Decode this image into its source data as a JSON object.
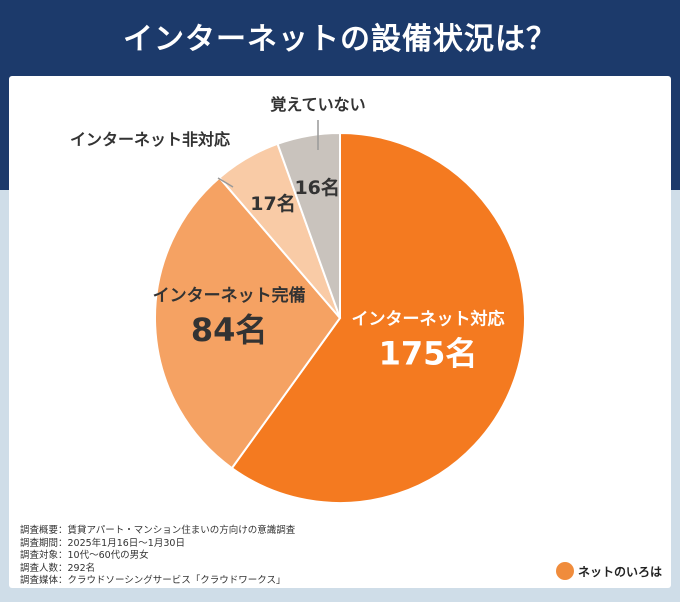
{
  "title": "インターネットの設備状況は？",
  "chart_data": {
    "type": "pie",
    "title": "インターネットの設備状況は？",
    "unit": "名",
    "slices": [
      {
        "label": "インターネット対応",
        "value": 175,
        "color": "#f47a20"
      },
      {
        "label": "インターネット完備",
        "value": 84,
        "color": "#f5a263"
      },
      {
        "label": "インターネット非対応",
        "value": 17,
        "color": "#f9cba6"
      },
      {
        "label": "覚えていない",
        "value": 16,
        "color": "#c9c3bd"
      }
    ],
    "value_labels": [
      "175名",
      "84名",
      "17名",
      "16名"
    ]
  },
  "notes": [
    "調査概要：賃貸アパート・マンション住まいの方向けの意識調査",
    "調査期間：2025年1月16日〜1月30日",
    "調査対象：10代〜60代の男女",
    "調査人数：292名",
    "調査媒体：クラウドソーシングサービス「クラウドワークス」"
  ],
  "logo": "ネットのいろは"
}
